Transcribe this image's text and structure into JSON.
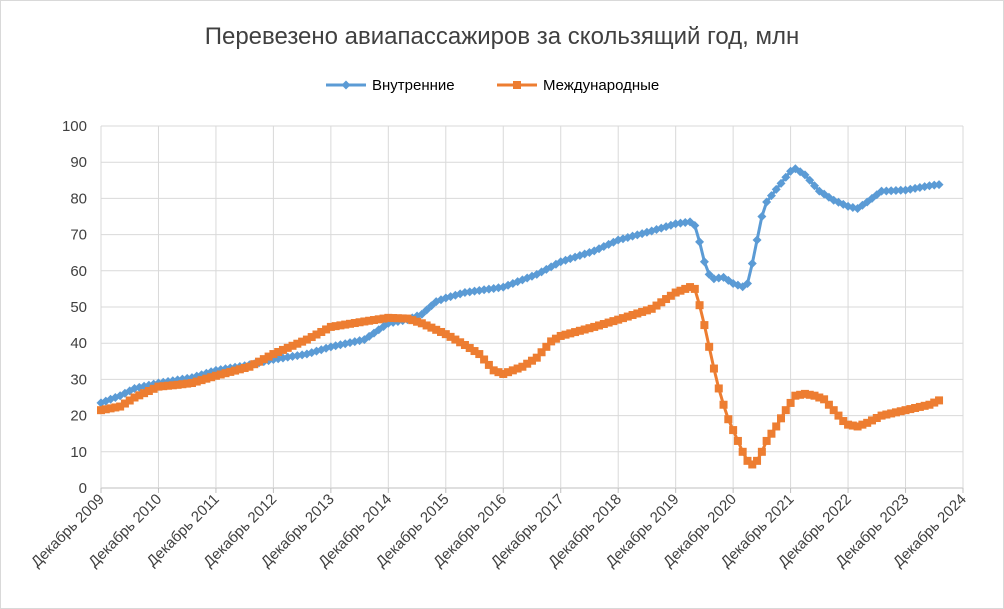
{
  "chart_data": {
    "type": "line",
    "title": "Перевезено авиапассажиров за скользящий год, млн",
    "xlabel": "",
    "ylabel": "",
    "ylim": [
      0,
      100
    ],
    "yticks": [
      "0",
      "10",
      "20",
      "30",
      "40",
      "50",
      "60",
      "70",
      "80",
      "90",
      "100"
    ],
    "x_tick_labels": [
      "Декабрь 2009",
      "Декабрь 2010",
      "Декабрь 2011",
      "Декабрь 2012",
      "Декабрь 2013",
      "Декабрь 2014",
      "Декабрь 2015",
      "Декабрь 2016",
      "Декабрь 2017",
      "Декабрь 2018",
      "Декабрь 2019",
      "Декабрь 2020",
      "Декабрь 2021",
      "Декабрь 2022",
      "Декабрь 2023",
      "Декабрь 2024"
    ],
    "x_range_years": [
      2009.917,
      2024.917
    ],
    "grid": true,
    "legend_position": "top",
    "series": [
      {
        "name": "Внутренние",
        "color": "#5b9bd5",
        "marker": "diamond",
        "points": [
          [
            2009.917,
            23.5
          ],
          [
            2010.25,
            25.5
          ],
          [
            2010.5,
            27.5
          ],
          [
            2010.917,
            29.0
          ],
          [
            2011.5,
            30.5
          ],
          [
            2011.917,
            32.5
          ],
          [
            2012.5,
            34.0
          ],
          [
            2012.917,
            35.5
          ],
          [
            2013.5,
            37.0
          ],
          [
            2013.917,
            39.0
          ],
          [
            2014.5,
            41.0
          ],
          [
            2014.917,
            45.5
          ],
          [
            2015.25,
            46.5
          ],
          [
            2015.5,
            48.0
          ],
          [
            2015.75,
            51.5
          ],
          [
            2015.917,
            52.5
          ],
          [
            2016.25,
            54.0
          ],
          [
            2016.917,
            55.5
          ],
          [
            2017.5,
            59.0
          ],
          [
            2017.917,
            62.5
          ],
          [
            2018.5,
            65.5
          ],
          [
            2018.917,
            68.5
          ],
          [
            2019.5,
            71.0
          ],
          [
            2019.917,
            73.0
          ],
          [
            2020.167,
            73.5
          ],
          [
            2020.25,
            72.5
          ],
          [
            2020.333,
            68.0
          ],
          [
            2020.417,
            62.5
          ],
          [
            2020.5,
            59.0
          ],
          [
            2020.583,
            57.8
          ],
          [
            2020.75,
            58.2
          ],
          [
            2020.917,
            56.5
          ],
          [
            2021.083,
            55.6
          ],
          [
            2021.167,
            56.5
          ],
          [
            2021.25,
            62.0
          ],
          [
            2021.333,
            68.5
          ],
          [
            2021.417,
            75.0
          ],
          [
            2021.5,
            79.0
          ],
          [
            2021.667,
            82.5
          ],
          [
            2021.917,
            87.5
          ],
          [
            2022.0,
            88.2
          ],
          [
            2022.167,
            86.5
          ],
          [
            2022.417,
            82.0
          ],
          [
            2022.667,
            79.5
          ],
          [
            2022.917,
            77.8
          ],
          [
            2023.083,
            77.2
          ],
          [
            2023.25,
            79.0
          ],
          [
            2023.5,
            82.0
          ],
          [
            2023.917,
            82.3
          ],
          [
            2024.333,
            83.5
          ],
          [
            2024.5,
            83.8
          ]
        ]
      },
      {
        "name": "Международные",
        "color": "#ed7d31",
        "marker": "square",
        "points": [
          [
            2009.917,
            21.5
          ],
          [
            2010.25,
            22.5
          ],
          [
            2010.5,
            25.0
          ],
          [
            2010.917,
            28.0
          ],
          [
            2011.25,
            28.5
          ],
          [
            2011.5,
            29.0
          ],
          [
            2011.917,
            31.0
          ],
          [
            2012.5,
            33.5
          ],
          [
            2012.917,
            37.0
          ],
          [
            2013.5,
            41.0
          ],
          [
            2013.917,
            44.5
          ],
          [
            2014.5,
            46.0
          ],
          [
            2014.917,
            47.0
          ],
          [
            2015.25,
            46.8
          ],
          [
            2015.5,
            45.5
          ],
          [
            2015.917,
            42.5
          ],
          [
            2016.25,
            39.5
          ],
          [
            2016.5,
            37.0
          ],
          [
            2016.75,
            32.5
          ],
          [
            2016.917,
            31.5
          ],
          [
            2017.25,
            33.5
          ],
          [
            2017.5,
            36.0
          ],
          [
            2017.75,
            40.5
          ],
          [
            2017.917,
            42.0
          ],
          [
            2018.5,
            44.5
          ],
          [
            2018.917,
            46.5
          ],
          [
            2019.5,
            49.5
          ],
          [
            2019.917,
            54.0
          ],
          [
            2020.167,
            55.5
          ],
          [
            2020.25,
            55.0
          ],
          [
            2020.333,
            50.5
          ],
          [
            2020.417,
            45.0
          ],
          [
            2020.5,
            39.0
          ],
          [
            2020.583,
            33.0
          ],
          [
            2020.667,
            27.5
          ],
          [
            2020.75,
            23.0
          ],
          [
            2020.833,
            19.0
          ],
          [
            2020.917,
            16.0
          ],
          [
            2021.0,
            13.0
          ],
          [
            2021.083,
            10.0
          ],
          [
            2021.167,
            7.5
          ],
          [
            2021.25,
            6.5
          ],
          [
            2021.333,
            7.5
          ],
          [
            2021.417,
            10.0
          ],
          [
            2021.5,
            13.0
          ],
          [
            2021.667,
            17.0
          ],
          [
            2021.833,
            21.5
          ],
          [
            2021.917,
            23.5
          ],
          [
            2022.0,
            25.5
          ],
          [
            2022.167,
            26.0
          ],
          [
            2022.333,
            25.5
          ],
          [
            2022.5,
            24.5
          ],
          [
            2022.667,
            21.5
          ],
          [
            2022.833,
            18.5
          ],
          [
            2022.917,
            17.5
          ],
          [
            2023.083,
            17.0
          ],
          [
            2023.25,
            18.0
          ],
          [
            2023.5,
            20.0
          ],
          [
            2023.917,
            21.5
          ],
          [
            2024.333,
            23.0
          ],
          [
            2024.5,
            24.2
          ]
        ]
      }
    ]
  }
}
